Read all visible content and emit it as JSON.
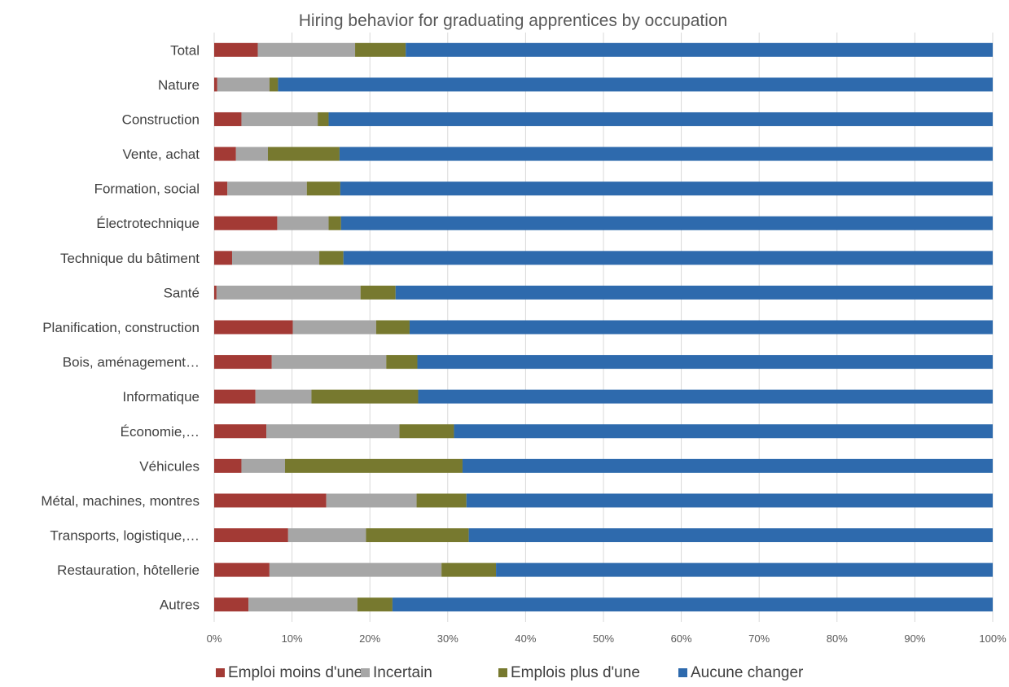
{
  "chart_data": {
    "type": "bar",
    "orientation": "horizontal",
    "stacked": "percent",
    "title": "Hiring behavior for graduating apprentices by occupation",
    "xlabel": "",
    "ylabel": "",
    "xlim": [
      0,
      100
    ],
    "grid": true,
    "legend_position": "bottom",
    "ticks": [
      "0%",
      "10%",
      "20%",
      "30%",
      "40%",
      "50%",
      "60%",
      "70%",
      "80%",
      "90%",
      "100%"
    ],
    "categories": [
      "Total",
      "Nature",
      "Construction",
      "Vente, achat",
      "Formation, social",
      "Électrotechnique",
      "Technique du bâtiment",
      "Santé",
      "Planification, construction",
      "Bois, aménagement…",
      "Informatique",
      "Économie,…",
      "Véhicules",
      "Métal, machines, montres",
      "Transports, logistique,…",
      "Restauration, hôtellerie",
      "Autres"
    ],
    "series": [
      {
        "name": "Emploi moins d'une",
        "color": "#a33a35",
        "values": [
          5.6,
          0.4,
          3.5,
          2.8,
          1.7,
          8.1,
          2.3,
          0.3,
          10.1,
          7.4,
          5.3,
          6.7,
          3.5,
          14.4,
          9.5,
          7.1,
          4.4
        ]
      },
      {
        "name": "Incertain",
        "color": "#a6a6a6",
        "values": [
          12.5,
          6.7,
          9.8,
          4.1,
          10.2,
          6.6,
          11.2,
          18.5,
          10.7,
          14.7,
          7.2,
          17.1,
          5.6,
          11.6,
          10.0,
          22.1,
          14.0
        ]
      },
      {
        "name": "Emplois plus d'une",
        "color": "#77792f",
        "values": [
          6.5,
          1.1,
          1.4,
          9.2,
          4.3,
          1.6,
          3.1,
          4.5,
          4.3,
          4.0,
          13.7,
          7.0,
          22.8,
          6.4,
          13.2,
          7.0,
          4.5
        ]
      },
      {
        "name": "Aucune changer",
        "color": "#2e6aad",
        "values": [
          75.4,
          91.8,
          85.3,
          83.9,
          83.8,
          83.7,
          83.4,
          76.7,
          74.9,
          73.9,
          73.8,
          69.2,
          68.1,
          67.6,
          67.3,
          63.8,
          77.1
        ]
      }
    ]
  }
}
